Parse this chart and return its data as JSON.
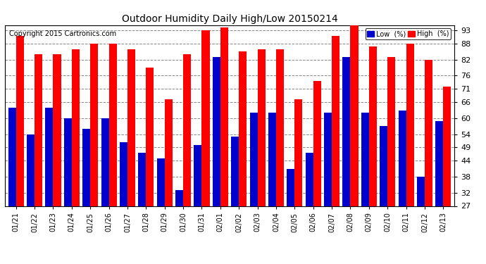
{
  "title": "Outdoor Humidity Daily High/Low 20150214",
  "copyright": "Copyright 2015 Cartronics.com",
  "dates": [
    "01/21",
    "01/22",
    "01/23",
    "01/24",
    "01/25",
    "01/26",
    "01/27",
    "01/28",
    "01/29",
    "01/30",
    "01/31",
    "02/01",
    "02/02",
    "02/03",
    "02/04",
    "02/05",
    "02/06",
    "02/07",
    "02/08",
    "02/09",
    "02/10",
    "02/11",
    "02/12",
    "02/13"
  ],
  "high": [
    91,
    84,
    84,
    86,
    88,
    88,
    86,
    79,
    67,
    84,
    93,
    94,
    85,
    86,
    86,
    67,
    74,
    91,
    95,
    87,
    83,
    88,
    82,
    72
  ],
  "low": [
    64,
    54,
    64,
    60,
    56,
    60,
    51,
    47,
    45,
    33,
    50,
    83,
    53,
    62,
    62,
    41,
    47,
    62,
    83,
    62,
    57,
    63,
    38,
    59
  ],
  "high_color": "#FF0000",
  "low_color": "#0000CC",
  "bg_color": "#FFFFFF",
  "plot_bg_color": "#FFFFFF",
  "grid_color": "#888888",
  "yticks": [
    27,
    32,
    38,
    44,
    49,
    54,
    60,
    66,
    71,
    76,
    82,
    88,
    93
  ],
  "ymin": 27,
  "ymax": 95,
  "bar_width": 0.42
}
